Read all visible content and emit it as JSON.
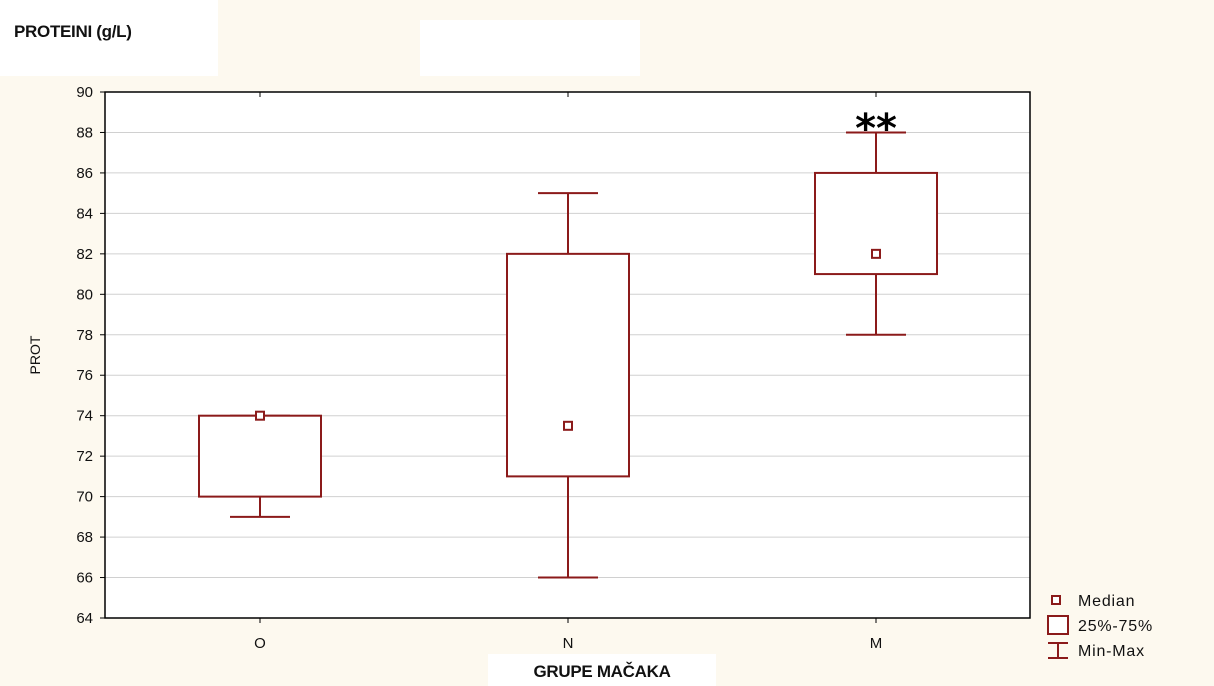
{
  "title": "PROTEINI (g/L)",
  "xlabel": "GRUPE MAČAKA",
  "ylabel": "PROT",
  "annotation": "**",
  "legend_items": [
    "Median",
    "25%-75%",
    "Min-Max"
  ],
  "colors": {
    "box": "#8b1a1a",
    "grid": "#d0d0d0",
    "frame": "#000000"
  },
  "chart_data": {
    "type": "box",
    "title": "PROTEINI (g/L)",
    "xlabel": "GRUPE MAČAKA",
    "ylabel": "PROT",
    "ylim": [
      64,
      90
    ],
    "yticks": [
      64,
      66,
      68,
      70,
      72,
      74,
      76,
      78,
      80,
      82,
      84,
      86,
      88,
      90
    ],
    "grid": true,
    "legend": "outside bottom-right",
    "categories": [
      "O",
      "N",
      "M"
    ],
    "series": [
      {
        "category": "O",
        "min": 69,
        "q1": 70,
        "median": 74,
        "q3": 74,
        "max": 74
      },
      {
        "category": "N",
        "min": 66,
        "q1": 71,
        "median": 73.5,
        "q3": 82,
        "max": 85
      },
      {
        "category": "M",
        "min": 78,
        "q1": 81,
        "median": 82,
        "q3": 86,
        "max": 88
      }
    ],
    "annotations": [
      {
        "category": "M",
        "text": "**"
      }
    ]
  }
}
